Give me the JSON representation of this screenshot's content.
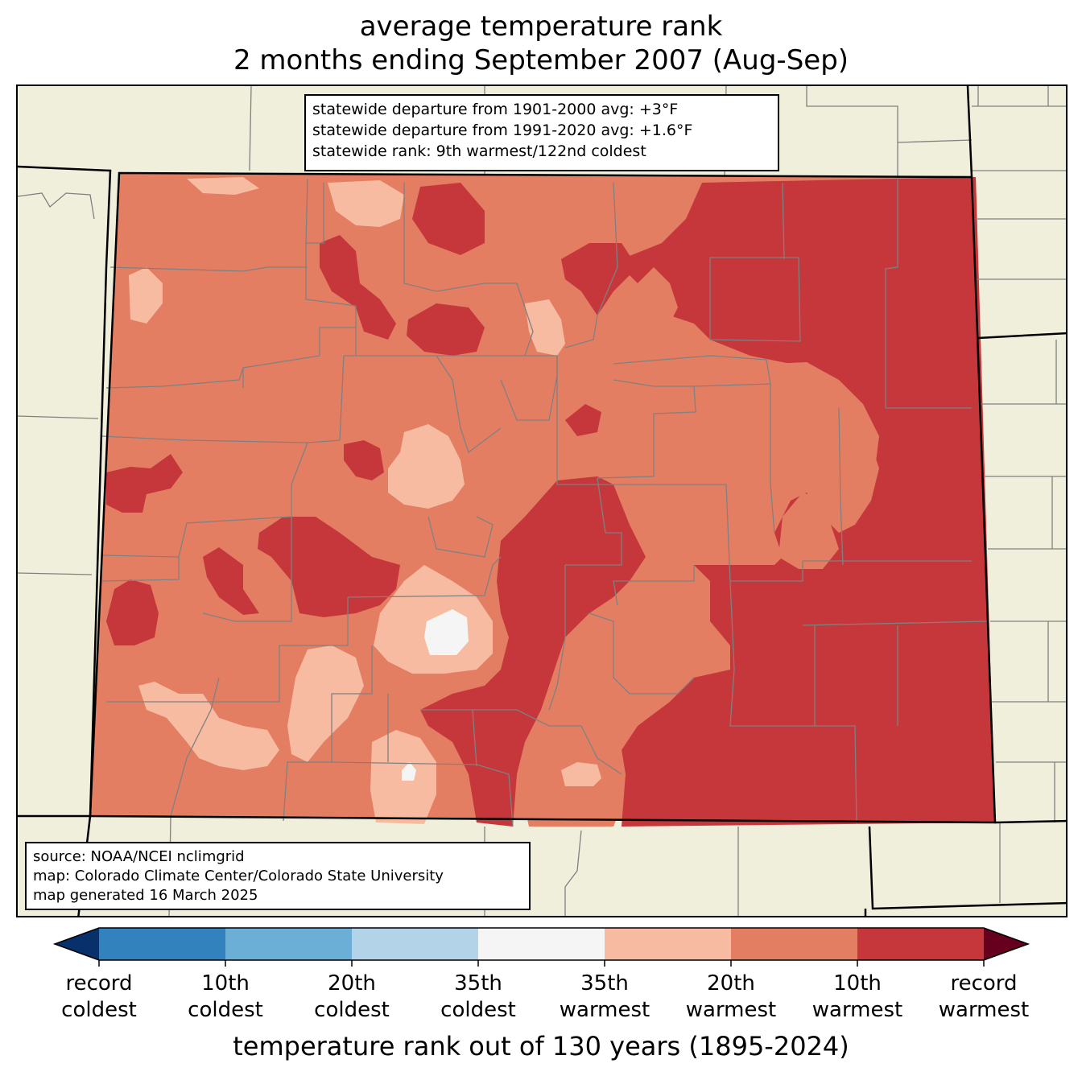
{
  "title": {
    "line1": "average temperature rank",
    "line2": "2 months ending September 2007 (Aug-Sep)"
  },
  "stats": [
    "statewide departure from 1901-2000 avg: +3°F",
    "statewide departure from 1991-2020 avg: +1.6°F",
    "statewide rank: 9th warmest/122nd coldest"
  ],
  "source": [
    "source: NOAA/NCEI nclimgrid",
    "map: Colorado Climate Center/Colorado State University",
    "map generated 16 March 2025"
  ],
  "colorbar": {
    "label": "temperature rank out of 130 years (1895-2024)",
    "bins": [
      {
        "color": "#08306b"
      },
      {
        "color": "#3182bd"
      },
      {
        "color": "#6baed6"
      },
      {
        "color": "#b3d3e8"
      },
      {
        "color": "#f5f5f5"
      },
      {
        "color": "#f7bba1"
      },
      {
        "color": "#e47e63"
      },
      {
        "color": "#c5373b"
      },
      {
        "color": "#67001f"
      }
    ],
    "ticks": [
      {
        "line1": "record",
        "line2": "coldest"
      },
      {
        "line1": "10th",
        "line2": "coldest"
      },
      {
        "line1": "20th",
        "line2": "coldest"
      },
      {
        "line1": "35th",
        "line2": "coldest"
      },
      {
        "line1": "35th",
        "line2": "warmest"
      },
      {
        "line1": "20th",
        "line2": "warmest"
      },
      {
        "line1": "10th",
        "line2": "warmest"
      },
      {
        "line1": "record",
        "line2": "warmest"
      }
    ]
  },
  "colors": {
    "background_land": "#f0efdc",
    "rank_35th_warmest": "#f7bba1",
    "rank_20th_warmest": "#e47e63",
    "rank_10th_warmest": "#c5373b",
    "near_normal": "#f5f5f5",
    "county_lines": "#808080",
    "state_lines": "#000000"
  }
}
